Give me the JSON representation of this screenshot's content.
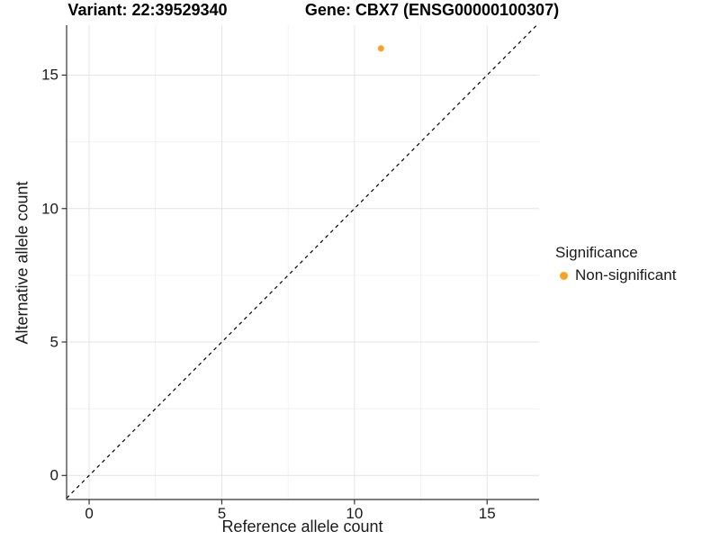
{
  "chart_data": {
    "type": "scatter",
    "variant_title": "Variant: 22:39529340",
    "gene_title": "Gene: CBX7 (ENSG00000100307)",
    "xlabel": "Reference allele count",
    "ylabel": "Alternative allele count",
    "x_ticks": [
      0,
      5,
      10,
      15
    ],
    "y_ticks": [
      0,
      5,
      10,
      15
    ],
    "x_minor_gridlines": [
      2.5,
      7.5,
      12.5
    ],
    "y_minor_gridlines": [
      2.5,
      7.5,
      12.5
    ],
    "xlim": [
      -0.85,
      16.96
    ],
    "ylim": [
      -0.9,
      16.87
    ],
    "grid": true,
    "points": [
      {
        "x": 11,
        "y": 16,
        "series": "Non-significant",
        "color": "#FBA226"
      }
    ],
    "reference_line": {
      "kind": "identity_y_equals_x",
      "style": "dashed",
      "color": "#000000"
    },
    "legend": {
      "title": "Significance",
      "position": "right",
      "items": [
        {
          "label": "Non-significant",
          "color": "#FBA226"
        }
      ]
    },
    "colors": {
      "axis_line": "#333333",
      "grid_major": "#E4E4E4",
      "grid_minor": "#EFEFEF",
      "point": "#FBA226",
      "text": "#1A1A1A"
    }
  }
}
